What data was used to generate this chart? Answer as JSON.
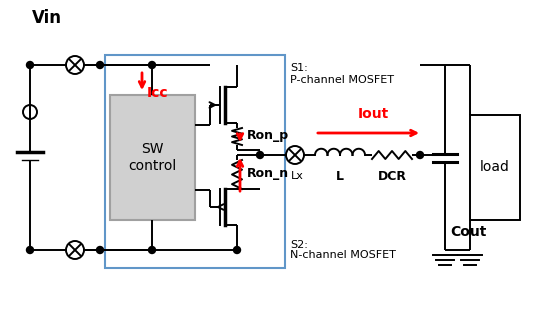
{
  "bg_color": "#ffffff",
  "line_color": "#000000",
  "red_color": "#ff0000",
  "blue_color": "#6096c8",
  "gray_color": "#a0a0a0",
  "sw_box_fill": "#d0d0d0",
  "labels": {
    "Vin": "Vin",
    "Icc": "Icc",
    "S1": "S1:",
    "P_ch": "P-channel MOSFET",
    "Ron_p": "Ron_p",
    "Iout": "Iout",
    "Lx": "Lx",
    "L": "L",
    "DCR": "DCR",
    "Cout": "Cout",
    "load": "load",
    "SW": "SW\ncontrol",
    "S2": "S2:",
    "N_ch": "N-channel MOSFET",
    "Ron_n": "Ron_n"
  }
}
